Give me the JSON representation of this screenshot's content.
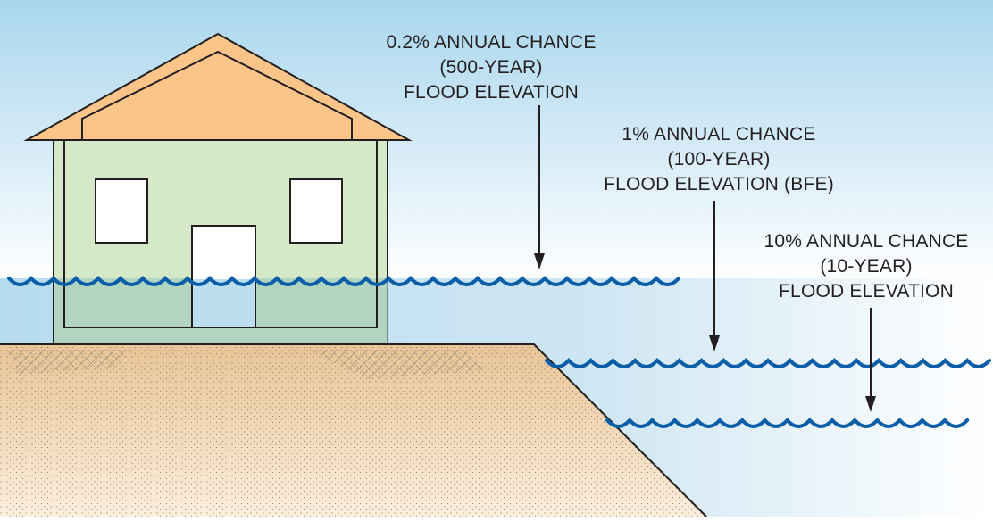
{
  "diagram": {
    "labels": {
      "flood_500": {
        "line1": "0.2% ANNUAL CHANCE",
        "line2": "(500-YEAR)",
        "line3": "FLOOD ELEVATION"
      },
      "flood_100": {
        "line1": "1% ANNUAL CHANCE",
        "line2": "(100-YEAR)",
        "line3": "FLOOD ELEVATION (BFE)"
      },
      "flood_10": {
        "line1": "10% ANNUAL CHANCE",
        "line2": "(10-YEAR)",
        "line3": "FLOOD ELEVATION"
      }
    },
    "colors": {
      "water_line": "#0a5ea8",
      "house_wall": "#d5e8c8",
      "roof": "#fbc58a",
      "ground": "#efcfa0",
      "sky_top": "#a9d6ee",
      "water": "#bcdff0"
    }
  }
}
